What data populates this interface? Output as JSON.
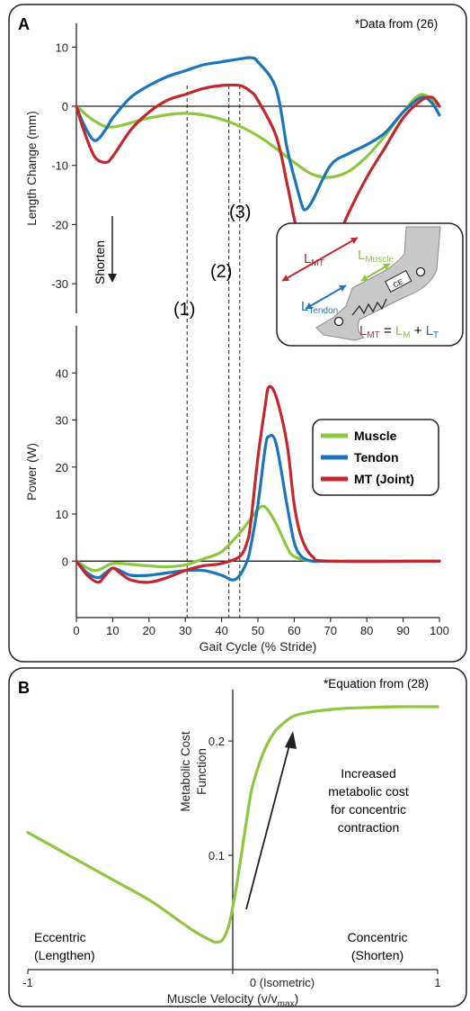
{
  "colors": {
    "muscle": "#8dc63f",
    "tendon": "#1b75bc",
    "mt": "#c1272d"
  },
  "panel_a": {
    "letter": "A",
    "note": "*Data from (26)",
    "shorten_label": "Shorten",
    "markers": [
      "(1)",
      "(2)",
      "(3)"
    ],
    "inset_labels": {
      "lmt": "L",
      "lmt_sub": "MT",
      "lmuscle": "L",
      "lmuscle_sub": "Muscle",
      "ltendon": "L",
      "ltendon_sub": "Tendon",
      "ce": "CE",
      "eq_l1": "L",
      "eq_s1": "MT",
      "eq_eq": " = ",
      "eq_l2": "L",
      "eq_s2": "M",
      "eq_plus": " + ",
      "eq_l3": "L",
      "eq_s3": "T"
    },
    "legend": [
      "Muscle",
      "Tendon",
      "MT (Joint)"
    ]
  },
  "panel_b": {
    "letter": "B",
    "note": "*Equation from (28)",
    "annotation": [
      "Increased",
      "metabolic cost",
      "for concentric",
      "contraction"
    ],
    "eccentric": [
      "Eccentric",
      "(Lengthen)"
    ],
    "concentric": [
      "Concentric",
      "(Shorten)"
    ]
  },
  "chart_data": [
    {
      "type": "line",
      "title": "",
      "xlabel": "Gait Cycle (% Stride)",
      "ylabel": "Length Change (mm)",
      "xlim": [
        0,
        100
      ],
      "ylim": [
        -35,
        14
      ],
      "yticks": [
        10,
        0,
        -10,
        -20,
        -30
      ],
      "series": [
        {
          "name": "Muscle",
          "x": [
            0,
            5,
            10,
            20,
            30,
            40,
            50,
            60,
            65,
            70,
            75,
            80,
            85,
            90,
            95,
            100
          ],
          "y": [
            0,
            -2.5,
            -3.5,
            -2,
            -1.2,
            -2.2,
            -5,
            -9.5,
            -11.5,
            -12,
            -11,
            -8.5,
            -5,
            -1,
            2,
            0
          ]
        },
        {
          "name": "Tendon",
          "x": [
            0,
            2,
            5,
            8,
            10,
            15,
            20,
            25,
            30,
            35,
            40,
            45,
            48,
            50,
            55,
            58,
            60,
            62,
            63,
            65,
            70,
            75,
            80,
            85,
            90,
            95,
            98,
            100
          ],
          "y": [
            0,
            -3,
            -5.8,
            -4,
            -2,
            1.5,
            3.5,
            5,
            6,
            7,
            7.5,
            8,
            8.2,
            7.5,
            3,
            -7,
            -12,
            -16.5,
            -17.5,
            -16,
            -10,
            -8,
            -6.5,
            -4.5,
            -1,
            1.5,
            0.5,
            -1.5
          ]
        },
        {
          "name": "MT (Joint)",
          "x": [
            0,
            2,
            5,
            8,
            10,
            15,
            20,
            25,
            30,
            35,
            40,
            45,
            48,
            50,
            55,
            58,
            60,
            62,
            65,
            70,
            75,
            80,
            85,
            90,
            95,
            98,
            100
          ],
          "y": [
            0,
            -4,
            -8.5,
            -9.5,
            -8.5,
            -4,
            -1,
            1,
            2,
            3,
            3.5,
            3.5,
            2.5,
            1,
            -5,
            -13,
            -19,
            -24,
            -29,
            -25,
            -18,
            -12,
            -7,
            -2,
            1,
            1.5,
            0
          ]
        }
      ],
      "vlines": [
        {
          "label": "(1)",
          "x": 30.5
        },
        {
          "label": "(2)",
          "x": 42
        },
        {
          "label": "(3)",
          "x": 45
        }
      ]
    },
    {
      "type": "line",
      "title": "",
      "xlabel": "Gait Cycle (% Stride)",
      "ylabel": "Power (W)",
      "xlim": [
        0,
        100
      ],
      "ylim": [
        -12,
        50
      ],
      "yticks": [
        40,
        30,
        20,
        10,
        0
      ],
      "xticks": [
        0,
        10,
        20,
        30,
        40,
        50,
        60,
        70,
        80,
        90,
        100
      ],
      "legend_position": "right",
      "series": [
        {
          "name": "Muscle",
          "x": [
            0,
            5,
            10,
            15,
            20,
            25,
            30,
            35,
            40,
            45,
            48,
            50,
            52,
            55,
            58,
            60,
            65,
            70,
            100
          ],
          "y": [
            0,
            -2,
            -0.5,
            -0.7,
            -1,
            -1.2,
            -0.8,
            0.5,
            2,
            6,
            9,
            11,
            11.5,
            8,
            3,
            1,
            0,
            0,
            0
          ]
        },
        {
          "name": "Tendon",
          "x": [
            0,
            3,
            6,
            8,
            10,
            12,
            15,
            20,
            25,
            30,
            35,
            40,
            43,
            45,
            47,
            48,
            50,
            52,
            53,
            55,
            58,
            60,
            62,
            65,
            70,
            100
          ],
          "y": [
            0,
            -2.5,
            -3.5,
            -2.5,
            -1.5,
            -2,
            -3,
            -3,
            -2.5,
            -2,
            -2,
            -3,
            -4,
            -3,
            0,
            3,
            12,
            24,
            26.5,
            25,
            12,
            4,
            1,
            0,
            0,
            0
          ]
        },
        {
          "name": "MT (Joint)",
          "x": [
            0,
            3,
            6,
            8,
            10,
            12,
            15,
            20,
            25,
            30,
            35,
            40,
            45,
            47,
            48,
            50,
            52,
            53,
            55,
            58,
            60,
            62,
            65,
            70,
            100
          ],
          "y": [
            0,
            -3,
            -4.5,
            -3,
            -1.5,
            -2.5,
            -4,
            -4.5,
            -3.5,
            -2,
            -1,
            -0.5,
            1,
            4,
            8,
            22,
            33,
            37,
            35,
            25,
            12,
            5,
            1,
            0,
            0
          ]
        }
      ]
    },
    {
      "type": "line",
      "title": "",
      "xlabel": "Muscle Velocity (v/v",
      "xlabel_sub": "max",
      "xlabel_end": ")",
      "ylabel": "Metabolic Cost Function",
      "ylabel_lines": [
        "Metabolic Cost",
        "Function"
      ],
      "xlim": [
        -1,
        1
      ],
      "ylim": [
        0,
        0.245
      ],
      "xticks": [
        {
          "v": -1,
          "label": "-1"
        },
        {
          "v": 0,
          "label": "0 (Isometric)"
        },
        {
          "v": 1,
          "label": "1"
        }
      ],
      "yticks": [
        0.1,
        0.2
      ],
      "series": [
        {
          "name": "",
          "x": [
            -1,
            -0.8,
            -0.6,
            -0.4,
            -0.2,
            -0.1,
            -0.08,
            -0.05,
            -0.02,
            0,
            0.02,
            0.05,
            0.08,
            0.1,
            0.15,
            0.2,
            0.25,
            0.3,
            0.4,
            0.5,
            0.6,
            0.8,
            1
          ],
          "y": [
            0.12,
            0.1,
            0.08,
            0.06,
            0.035,
            0.025,
            0.024,
            0.026,
            0.038,
            0.055,
            0.075,
            0.11,
            0.145,
            0.163,
            0.19,
            0.207,
            0.216,
            0.222,
            0.226,
            0.228,
            0.229,
            0.23,
            0.23
          ]
        }
      ]
    }
  ]
}
